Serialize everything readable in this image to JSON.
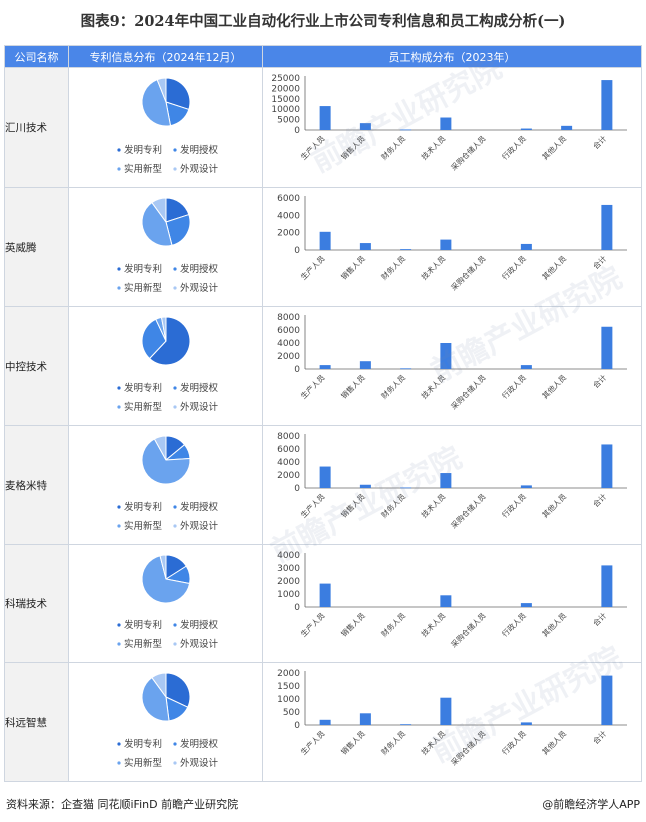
{
  "title": "图表9：2024年中国工业自动化行业上市公司专利信息和员工构成分析(一)",
  "headers": {
    "company": "公司名称",
    "patents": "专利信息分布（2024年12月）",
    "staff": "员工构成分布（2023年）"
  },
  "pie_legend": [
    "发明专利",
    "发明授权",
    "实用新型",
    "外观设计"
  ],
  "bar_categories": [
    "生产人员",
    "销售人员",
    "财务人员",
    "技术人员",
    "采购仓储人员",
    "行政人员",
    "其他人员",
    "合计"
  ],
  "colors": {
    "header_bg": "#4a86e8",
    "bar": "#3b7de0",
    "pie": [
      "#2b6cd4",
      "#3f86e6",
      "#6aa3ee",
      "#a9c8f4"
    ]
  },
  "watermark": "前瞻产业研究院",
  "footer": {
    "source": "资料来源：企查猫 同花顺iFinD 前瞻产业研究院",
    "brand": "@前瞻经济学人APP"
  },
  "chart_data": [
    {
      "type": "pie",
      "company": "汇川技术",
      "categories": [
        "发明专利",
        "发明授权",
        "实用新型",
        "外观设计"
      ],
      "values": [
        30,
        17,
        47,
        6
      ]
    },
    {
      "type": "bar",
      "company": "汇川技术",
      "categories": [
        "生产人员",
        "销售人员",
        "财务人员",
        "技术人员",
        "采购仓储人员",
        "行政人员",
        "其他人员",
        "合计"
      ],
      "values": [
        11500,
        3300,
        250,
        6000,
        0,
        700,
        2000,
        24000
      ],
      "ylim": [
        0,
        25000
      ],
      "yticks": [
        0,
        5000,
        10000,
        15000,
        20000,
        25000
      ]
    },
    {
      "type": "pie",
      "company": "英威腾",
      "categories": [
        "发明专利",
        "发明授权",
        "实用新型",
        "外观设计"
      ],
      "values": [
        20,
        26,
        44,
        10
      ]
    },
    {
      "type": "bar",
      "company": "英威腾",
      "categories": [
        "生产人员",
        "销售人员",
        "财务人员",
        "技术人员",
        "采购仓储人员",
        "行政人员",
        "其他人员",
        "合计"
      ],
      "values": [
        2100,
        800,
        100,
        1200,
        0,
        700,
        0,
        5200
      ],
      "ylim": [
        0,
        6000
      ],
      "yticks": [
        0,
        2000,
        4000,
        6000
      ]
    },
    {
      "type": "pie",
      "company": "中控技术",
      "categories": [
        "发明专利",
        "发明授权",
        "实用新型",
        "外观设计"
      ],
      "values": [
        62,
        31,
        4,
        3
      ]
    },
    {
      "type": "bar",
      "company": "中控技术",
      "categories": [
        "生产人员",
        "销售人员",
        "财务人员",
        "技术人员",
        "采购仓储人员",
        "行政人员",
        "其他人员",
        "合计"
      ],
      "values": [
        600,
        1200,
        100,
        4000,
        0,
        600,
        0,
        6500
      ],
      "ylim": [
        0,
        8000
      ],
      "yticks": [
        0,
        2000,
        4000,
        6000,
        8000
      ]
    },
    {
      "type": "pie",
      "company": "麦格米特",
      "categories": [
        "发明专利",
        "发明授权",
        "实用新型",
        "外观设计"
      ],
      "values": [
        14,
        10,
        68,
        8
      ]
    },
    {
      "type": "bar",
      "company": "麦格米特",
      "categories": [
        "生产人员",
        "销售人员",
        "财务人员",
        "技术人员",
        "采购仓储人员",
        "行政人员",
        "其他人员",
        "合计"
      ],
      "values": [
        3300,
        500,
        80,
        2300,
        0,
        400,
        0,
        6700
      ],
      "ylim": [
        0,
        8000
      ],
      "yticks": [
        0,
        2000,
        4000,
        6000,
        8000
      ]
    },
    {
      "type": "pie",
      "company": "科瑞技术",
      "categories": [
        "发明专利",
        "发明授权",
        "实用新型",
        "外观设计"
      ],
      "values": [
        16,
        12,
        68,
        4
      ]
    },
    {
      "type": "bar",
      "company": "科瑞技术",
      "categories": [
        "生产人员",
        "销售人员",
        "财务人员",
        "技术人员",
        "采购仓储人员",
        "行政人员",
        "其他人员",
        "合计"
      ],
      "values": [
        1800,
        0,
        0,
        900,
        0,
        300,
        0,
        3200
      ],
      "ylim": [
        0,
        4000
      ],
      "yticks": [
        0,
        1000,
        2000,
        3000,
        4000
      ]
    },
    {
      "type": "pie",
      "company": "科远智慧",
      "categories": [
        "发明专利",
        "发明授权",
        "实用新型",
        "外观设计"
      ],
      "values": [
        32,
        16,
        42,
        10
      ]
    },
    {
      "type": "bar",
      "company": "科远智慧",
      "categories": [
        "生产人员",
        "销售人员",
        "财务人员",
        "技术人员",
        "采购仓储人员",
        "行政人员",
        "其他人员",
        "合计"
      ],
      "values": [
        200,
        450,
        30,
        1050,
        0,
        100,
        0,
        1900
      ],
      "ylim": [
        0,
        2000
      ],
      "yticks": [
        0,
        500,
        1000,
        1500,
        2000
      ]
    }
  ]
}
